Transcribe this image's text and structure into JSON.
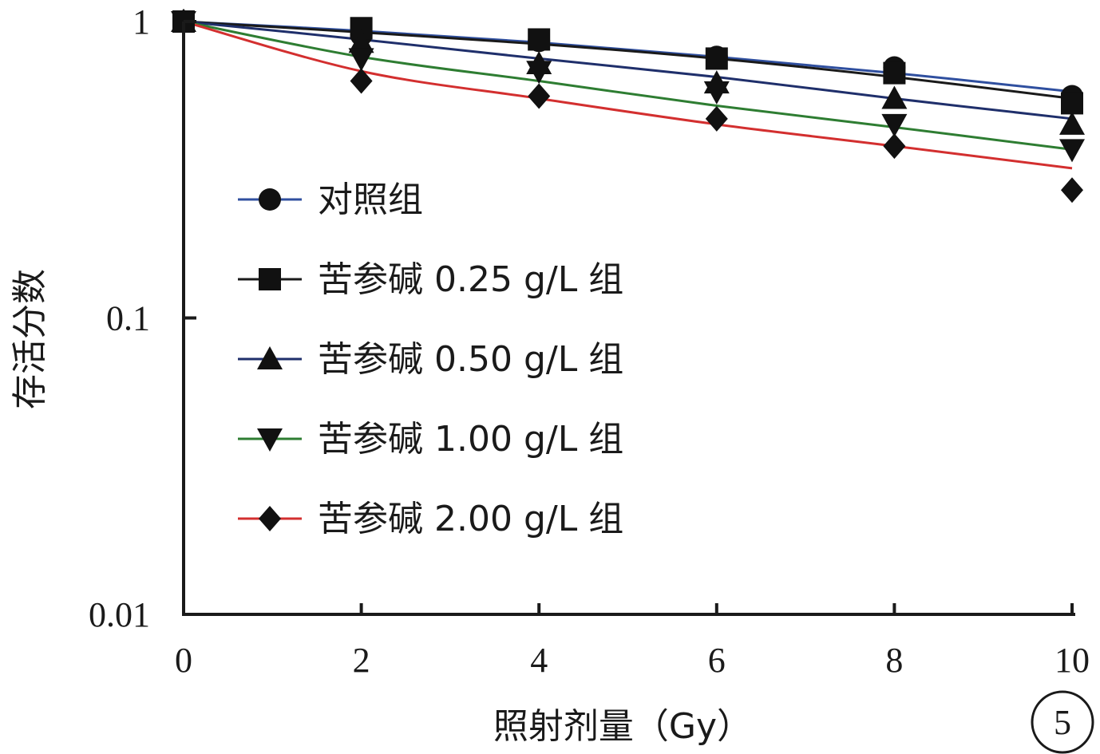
{
  "chart_data": {
    "type": "line",
    "xlabel": "照射剂量（Gy）",
    "ylabel": "存活分数",
    "xlim": [
      0,
      10
    ],
    "ylim": [
      0.01,
      1
    ],
    "y_scale": "log",
    "x_ticks": [
      0,
      2,
      4,
      6,
      8,
      10
    ],
    "x_tick_labels": [
      "0",
      "2",
      "4",
      "6",
      "8",
      "10"
    ],
    "y_ticks": [
      0.01,
      0.1,
      1
    ],
    "y_tick_labels": [
      "0.01",
      "0.1",
      "1"
    ],
    "grid": false,
    "legend_position": "center-left",
    "panel_label": "5",
    "x": [
      0,
      2,
      4,
      6,
      8,
      10
    ],
    "series": [
      {
        "name": "对照组",
        "marker": "circle",
        "line_color": "#2f4f9f",
        "values": [
          1.0,
          0.9,
          0.86,
          0.76,
          0.7,
          0.56
        ],
        "fit": [
          1.0,
          0.93,
          0.85,
          0.76,
          0.67,
          0.58
        ]
      },
      {
        "name": "苦参碱 0.25 g/L 组",
        "marker": "square",
        "line_color": "#1a1a1a",
        "values": [
          1.0,
          0.95,
          0.87,
          0.75,
          0.67,
          0.53
        ],
        "fit": [
          1.0,
          0.92,
          0.84,
          0.75,
          0.65,
          0.55
        ]
      },
      {
        "name": "苦参碱 0.50 g/L 组",
        "marker": "triangle-up",
        "line_color": "#1f2f6b",
        "values": [
          1.0,
          0.85,
          0.72,
          0.62,
          0.55,
          0.45
        ],
        "fit": [
          1.0,
          0.87,
          0.75,
          0.65,
          0.55,
          0.47
        ]
      },
      {
        "name": "苦参碱 1.00 g/L 组",
        "marker": "triangle-down",
        "line_color": "#2e7d32",
        "values": [
          1.0,
          0.75,
          0.68,
          0.58,
          0.45,
          0.37
        ],
        "fit": [
          1.0,
          0.76,
          0.63,
          0.52,
          0.44,
          0.37
        ]
      },
      {
        "name": "苦参碱 2.00 g/L 组",
        "marker": "diamond",
        "line_color": "#d32f2f",
        "values": [
          1.0,
          0.63,
          0.56,
          0.47,
          0.38,
          0.27
        ],
        "fit": [
          1.0,
          0.68,
          0.55,
          0.45,
          0.38,
          0.32
        ]
      }
    ]
  }
}
